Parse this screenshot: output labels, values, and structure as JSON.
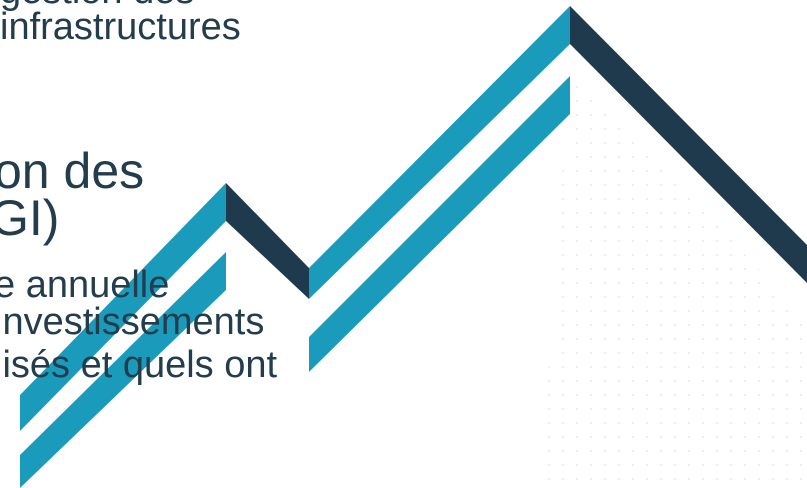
{
  "slide": {
    "line_top_clipped": "gestion des",
    "line_top": "infrastructures",
    "heading_line1": "on des",
    "heading_line2": "GI)",
    "body_line1": "e annuelle",
    "body_line2": "investissements",
    "body_line3": "lisés et quels ont"
  },
  "colors": {
    "text": "#233d4d",
    "teal": "#1a9bbb",
    "navy": "#1f3a4d",
    "dots": "#e3e9ee"
  },
  "decoration": {
    "icon": "mountain-zigzag-graphic"
  }
}
